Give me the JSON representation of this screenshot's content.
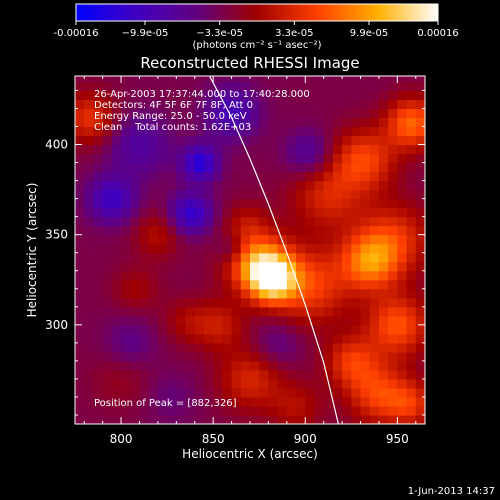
{
  "chart_data": {
    "type": "heatmap",
    "title": "Reconstructed RHESSI Image",
    "xlabel": "Heliocentric X (arcsec)",
    "ylabel": "Heliocentric Y (arcsec)",
    "xlim": [
      775,
      965
    ],
    "ylim": [
      245,
      438
    ],
    "x_ticks": [
      800,
      850,
      900,
      950
    ],
    "y_ticks": [
      300,
      350,
      400
    ],
    "grid": false,
    "colorbar": {
      "range": [
        -0.00016,
        0.00016
      ],
      "tick_values": [
        -0.00016,
        -9.9e-05,
        -3.3e-05,
        3.3e-05,
        9.9e-05,
        0.00016
      ],
      "tick_labels": [
        "-0.00016",
        "−9.9e-05",
        "−3.3e-05",
        "3.3e-05",
        "9.9e-05",
        "0.00016"
      ],
      "label": "(photons cm⁻² s⁻¹ asec⁻²)",
      "colormap": [
        "#0000ff",
        "#4000c0",
        "#600080",
        "#a00000",
        "#ff4000",
        "#ffb000",
        "#ffffff"
      ]
    },
    "annotations": [
      "26-Apr-2003 17:37:44.000 to 17:40:28.000",
      "Detectors: 4F 5F 6F 7F 8F, Att 0",
      "Energy Range: 25.0 - 50.0 keV",
      "Clean    Total counts: 1.62E+03"
    ],
    "peak_label": "Position of Peak = [882,326]",
    "peak": {
      "x": 882,
      "y": 326
    },
    "limb_curve": {
      "x": [
        848,
        860,
        870,
        880,
        890,
        900,
        910,
        918
      ],
      "y": [
        438,
        415,
        392,
        367,
        340,
        311,
        279,
        245
      ]
    },
    "blobs": [
      {
        "x": 882,
        "y": 326,
        "v": 0.00016,
        "s": 9
      },
      {
        "x": 873,
        "y": 336,
        "v": 0.00011,
        "s": 12
      },
      {
        "x": 903,
        "y": 322,
        "v": 8e-05,
        "s": 15
      },
      {
        "x": 935,
        "y": 335,
        "v": 0.0001,
        "s": 11
      },
      {
        "x": 948,
        "y": 348,
        "v": 7e-05,
        "s": 14
      },
      {
        "x": 958,
        "y": 412,
        "v": 0.0001,
        "s": 10
      },
      {
        "x": 932,
        "y": 392,
        "v": 8e-05,
        "s": 12
      },
      {
        "x": 950,
        "y": 300,
        "v": 9e-05,
        "s": 12
      },
      {
        "x": 940,
        "y": 262,
        "v": 8e-05,
        "s": 12
      },
      {
        "x": 925,
        "y": 280,
        "v": 7e-05,
        "s": 10
      },
      {
        "x": 912,
        "y": 372,
        "v": 6e-05,
        "s": 14
      },
      {
        "x": 870,
        "y": 270,
        "v": 6e-05,
        "s": 12
      },
      {
        "x": 853,
        "y": 300,
        "v": 5e-05,
        "s": 10
      },
      {
        "x": 820,
        "y": 350,
        "v": 4e-05,
        "s": 9
      },
      {
        "x": 835,
        "y": 302,
        "v": 3e-05,
        "s": 9
      },
      {
        "x": 808,
        "y": 320,
        "v": 3e-05,
        "s": 9
      },
      {
        "x": 783,
        "y": 415,
        "v": 7e-05,
        "s": 10
      },
      {
        "x": 868,
        "y": 358,
        "v": 3e-05,
        "s": 8
      },
      {
        "x": 895,
        "y": 255,
        "v": 4e-05,
        "s": 10
      },
      {
        "x": 958,
        "y": 256,
        "v": 6e-05,
        "s": 9
      },
      {
        "x": 800,
        "y": 270,
        "v": 2e-05,
        "s": 12
      },
      {
        "x": 843,
        "y": 390,
        "v": -0.0001,
        "s": 7
      },
      {
        "x": 838,
        "y": 362,
        "v": -9e-05,
        "s": 8
      },
      {
        "x": 795,
        "y": 370,
        "v": -8e-05,
        "s": 9
      },
      {
        "x": 860,
        "y": 418,
        "v": -7e-05,
        "s": 10
      },
      {
        "x": 902,
        "y": 395,
        "v": -5e-05,
        "s": 9
      },
      {
        "x": 810,
        "y": 400,
        "v": -5e-05,
        "s": 12
      },
      {
        "x": 860,
        "y": 342,
        "v": -4e-05,
        "s": 6
      },
      {
        "x": 805,
        "y": 290,
        "v": -3e-05,
        "s": 10
      },
      {
        "x": 885,
        "y": 290,
        "v": -3e-05,
        "s": 9
      },
      {
        "x": 827,
        "y": 260,
        "v": -2e-05,
        "s": 10
      }
    ]
  },
  "footer_timestamp": "1-Jun-2013 14:37"
}
